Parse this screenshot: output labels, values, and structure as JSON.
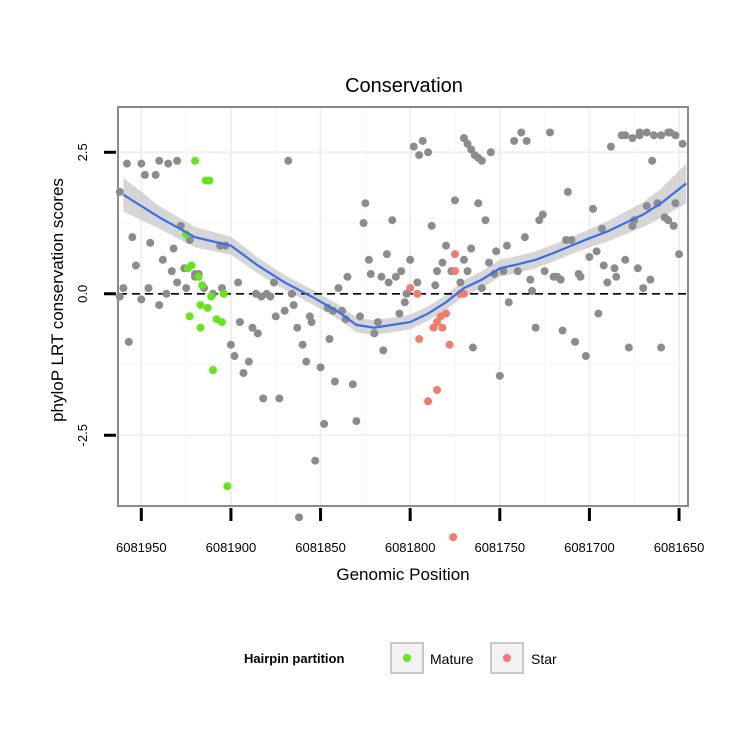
{
  "chart_data": {
    "type": "scatter",
    "title": "Conservation",
    "xlabel": "Genomic Position",
    "ylabel": "phyloP LRT conservation scores",
    "x_reversed": true,
    "xlim": [
      6081963,
      6081645
    ],
    "ylim": [
      -3.75,
      3.3
    ],
    "x_ticks": [
      6081950,
      6081900,
      6081850,
      6081800,
      6081750,
      6081700,
      6081650
    ],
    "x_tick_labels": [
      "6081950",
      "6081900",
      "6081850",
      "6081800",
      "6081750",
      "6081700",
      "6081650"
    ],
    "y_ticks": [
      2.5,
      0.0,
      -2.5
    ],
    "y_tick_labels": [
      "2.5",
      "0.0",
      "-2.5"
    ],
    "reference_line": {
      "y": 0,
      "style": "dashed"
    },
    "grid": true,
    "legend": {
      "position": "bottom",
      "title": "Hairpin partition",
      "entries": [
        {
          "label": "Mature",
          "color": "#66e61a"
        },
        {
          "label": "Star",
          "color": "#f07c6c"
        }
      ]
    },
    "colors": {
      "background": "#66e61a",
      "mature": "#66e61a",
      "star": "#f07c6c",
      "other": "#8c8c8c",
      "smooth": "#3a6ee8",
      "ribbon": "#c8c8c8"
    },
    "smooth": {
      "x": [
        6081960,
        6081940,
        6081920,
        6081900,
        6081885,
        6081870,
        6081855,
        6081840,
        6081830,
        6081820,
        6081810,
        6081800,
        6081790,
        6081780,
        6081770,
        6081760,
        6081750,
        6081740,
        6081730,
        6081720,
        6081710,
        6081700,
        6081690,
        6081680,
        6081670,
        6081660,
        6081646
      ],
      "y": [
        1.75,
        1.35,
        1.0,
        0.85,
        0.5,
        0.2,
        -0.05,
        -0.32,
        -0.55,
        -0.6,
        -0.55,
        -0.5,
        -0.35,
        -0.15,
        0.1,
        0.25,
        0.45,
        0.52,
        0.6,
        0.72,
        0.85,
        0.98,
        1.1,
        1.25,
        1.4,
        1.6,
        1.95
      ],
      "ribbon_half_width": [
        0.3,
        0.2,
        0.18,
        0.16,
        0.14,
        0.13,
        0.13,
        0.13,
        0.13,
        0.13,
        0.13,
        0.13,
        0.13,
        0.13,
        0.14,
        0.15,
        0.15,
        0.15,
        0.15,
        0.15,
        0.15,
        0.16,
        0.18,
        0.2,
        0.22,
        0.26,
        0.35
      ]
    },
    "series": [
      {
        "name": "Mature",
        "color": "#66e61a",
        "x": [
          6081925,
          6081924,
          6081923,
          6081922,
          6081920,
          6081918,
          6081917,
          6081916,
          6081914,
          6081912,
          6081911,
          6081910,
          6081908,
          6081905,
          6081904,
          6081902,
          6081917,
          6081913
        ],
        "y": [
          1.05,
          0.45,
          -0.4,
          0.5,
          2.35,
          0.3,
          -0.6,
          0.15,
          2.0,
          2.0,
          -0.05,
          -1.35,
          -0.45,
          -0.5,
          0.0,
          -3.4,
          -0.2,
          -0.25
        ]
      },
      {
        "name": "Star",
        "color": "#f07c6c",
        "x": [
          6081800,
          6081796,
          6081795,
          6081790,
          6081787,
          6081785,
          6081785,
          6081783,
          6081782,
          6081780,
          6081778,
          6081776,
          6081775,
          6081775,
          6081772,
          6081770
        ],
        "y": [
          0.1,
          0.0,
          -0.8,
          -1.9,
          -0.6,
          -1.7,
          -0.5,
          -0.4,
          -0.6,
          -0.35,
          -0.9,
          -4.3,
          0.7,
          0.4,
          0.0,
          0.0
        ]
      },
      {
        "name": "",
        "color": "#8c8c8c",
        "x": [
          6081962,
          6081960,
          6081958,
          6081955,
          6081953,
          6081950,
          6081948,
          6081945,
          6081942,
          6081940,
          6081938,
          6081935,
          6081932,
          6081930,
          6081928,
          6081925,
          6081920,
          6081918,
          6081915,
          6081910,
          6081905,
          6081900,
          6081898,
          6081895,
          6081893,
          6081890,
          6081888,
          6081885,
          6081882,
          6081880,
          6081878,
          6081875,
          6081873,
          6081870,
          6081868,
          6081865,
          6081862,
          6081860,
          6081858,
          6081855,
          6081853,
          6081850,
          6081848,
          6081845,
          6081842,
          6081840,
          6081838,
          6081835,
          6081832,
          6081830,
          6081828,
          6081825,
          6081822,
          6081820,
          6081818,
          6081815,
          6081812,
          6081810,
          6081808,
          6081805,
          6081802,
          6081800,
          6081798,
          6081795,
          6081793,
          6081790,
          6081788,
          6081785,
          6081782,
          6081780,
          6081777,
          6081775,
          6081772,
          6081770,
          6081768,
          6081765,
          6081762,
          6081760,
          6081758,
          6081755,
          6081752,
          6081750,
          6081748,
          6081745,
          6081742,
          6081740,
          6081738,
          6081735,
          6081732,
          6081730,
          6081728,
          6081725,
          6081722,
          6081720,
          6081718,
          6081715,
          6081712,
          6081710,
          6081708,
          6081705,
          6081702,
          6081700,
          6081698,
          6081695,
          6081692,
          6081690,
          6081688,
          6081685,
          6081682,
          6081680,
          6081678,
          6081675,
          6081672,
          6081670,
          6081668,
          6081665,
          6081662,
          6081660,
          6081658,
          6081655,
          6081652,
          6081650,
          6081648,
          6081946,
          6081936,
          6081926,
          6081906,
          6081896,
          6081886,
          6081876,
          6081866,
          6081856,
          6081846,
          6081836,
          6081826,
          6081816,
          6081806,
          6081796,
          6081786,
          6081766,
          6081756,
          6081746,
          6081736,
          6081726,
          6081716,
          6081706,
          6081696,
          6081686,
          6081676,
          6081666,
          6081656,
          6081957,
          6081933,
          6081923,
          6081903,
          6081883,
          6081863,
          6081843,
          6081823,
          6081813,
          6081803,
          6081753,
          6081733,
          6081713,
          6081693,
          6081673,
          6081653,
          6081962,
          6081950,
          6081940,
          6081930,
          6081920,
          6081770,
          6081768,
          6081766,
          6081764,
          6081762,
          6081760,
          6081680,
          6081676,
          6081672,
          6081668,
          6081664,
          6081660,
          6081656,
          6081652
        ],
        "y": [
          1.8,
          0.1,
          2.3,
          1.0,
          0.5,
          2.3,
          2.1,
          0.9,
          2.1,
          2.35,
          0.6,
          2.3,
          0.8,
          2.35,
          1.2,
          0.1,
          0.3,
          0.35,
          0.1,
          0.0,
          0.1,
          -0.9,
          -1.1,
          -0.5,
          -1.4,
          -1.2,
          -0.6,
          -0.7,
          -1.85,
          0.0,
          -0.05,
          -0.4,
          -1.85,
          -0.3,
          2.35,
          -0.2,
          -3.95,
          -0.9,
          -1.2,
          -0.5,
          -2.95,
          -1.3,
          -2.3,
          -0.8,
          -1.55,
          0.1,
          -0.3,
          0.3,
          -1.6,
          -2.25,
          -0.4,
          1.6,
          0.35,
          -0.7,
          -0.5,
          -1.0,
          0.2,
          1.3,
          0.3,
          0.4,
          0.0,
          0.6,
          2.6,
          2.45,
          2.7,
          2.5,
          1.2,
          0.4,
          0.55,
          0.85,
          0.4,
          1.65,
          0.2,
          0.6,
          0.4,
          -0.95,
          1.6,
          0.1,
          1.3,
          2.5,
          0.75,
          -1.45,
          0.4,
          -0.15,
          2.7,
          0.4,
          2.85,
          2.7,
          0.05,
          -0.6,
          1.3,
          0.4,
          2.85,
          0.3,
          0.3,
          -0.65,
          1.8,
          0.95,
          -0.85,
          0.3,
          -1.1,
          0.65,
          1.5,
          -0.35,
          0.5,
          0.2,
          2.6,
          0.3,
          2.8,
          0.6,
          -0.95,
          1.3,
          2.85,
          0.1,
          1.55,
          2.35,
          1.6,
          -0.95,
          1.35,
          2.85,
          1.6,
          0.7,
          2.65,
          0.1,
          0.0,
          0.45,
          0.85,
          0.2,
          0.0,
          0.2,
          0.0,
          -0.4,
          -0.25,
          -0.45,
          1.25,
          0.3,
          -0.35,
          0.2,
          0.15,
          0.8,
          0.55,
          0.85,
          1.0,
          1.4,
          0.25,
          0.35,
          0.75,
          0.45,
          1.2,
          0.25,
          1.3,
          -0.85,
          0.4,
          0.95,
          0.85,
          -0.05,
          -0.6,
          -0.3,
          0.6,
          0.7,
          -0.15,
          0.35,
          0.25,
          0.95,
          1.15,
          0.45,
          1.2,
          -0.05,
          -0.1,
          -0.2,
          0.2,
          0.35,
          2.75,
          2.65,
          2.55,
          2.45,
          2.4,
          2.35,
          2.8,
          2.75,
          2.8,
          2.85,
          2.8,
          2.8,
          2.85,
          2.8
        ]
      }
    ]
  }
}
